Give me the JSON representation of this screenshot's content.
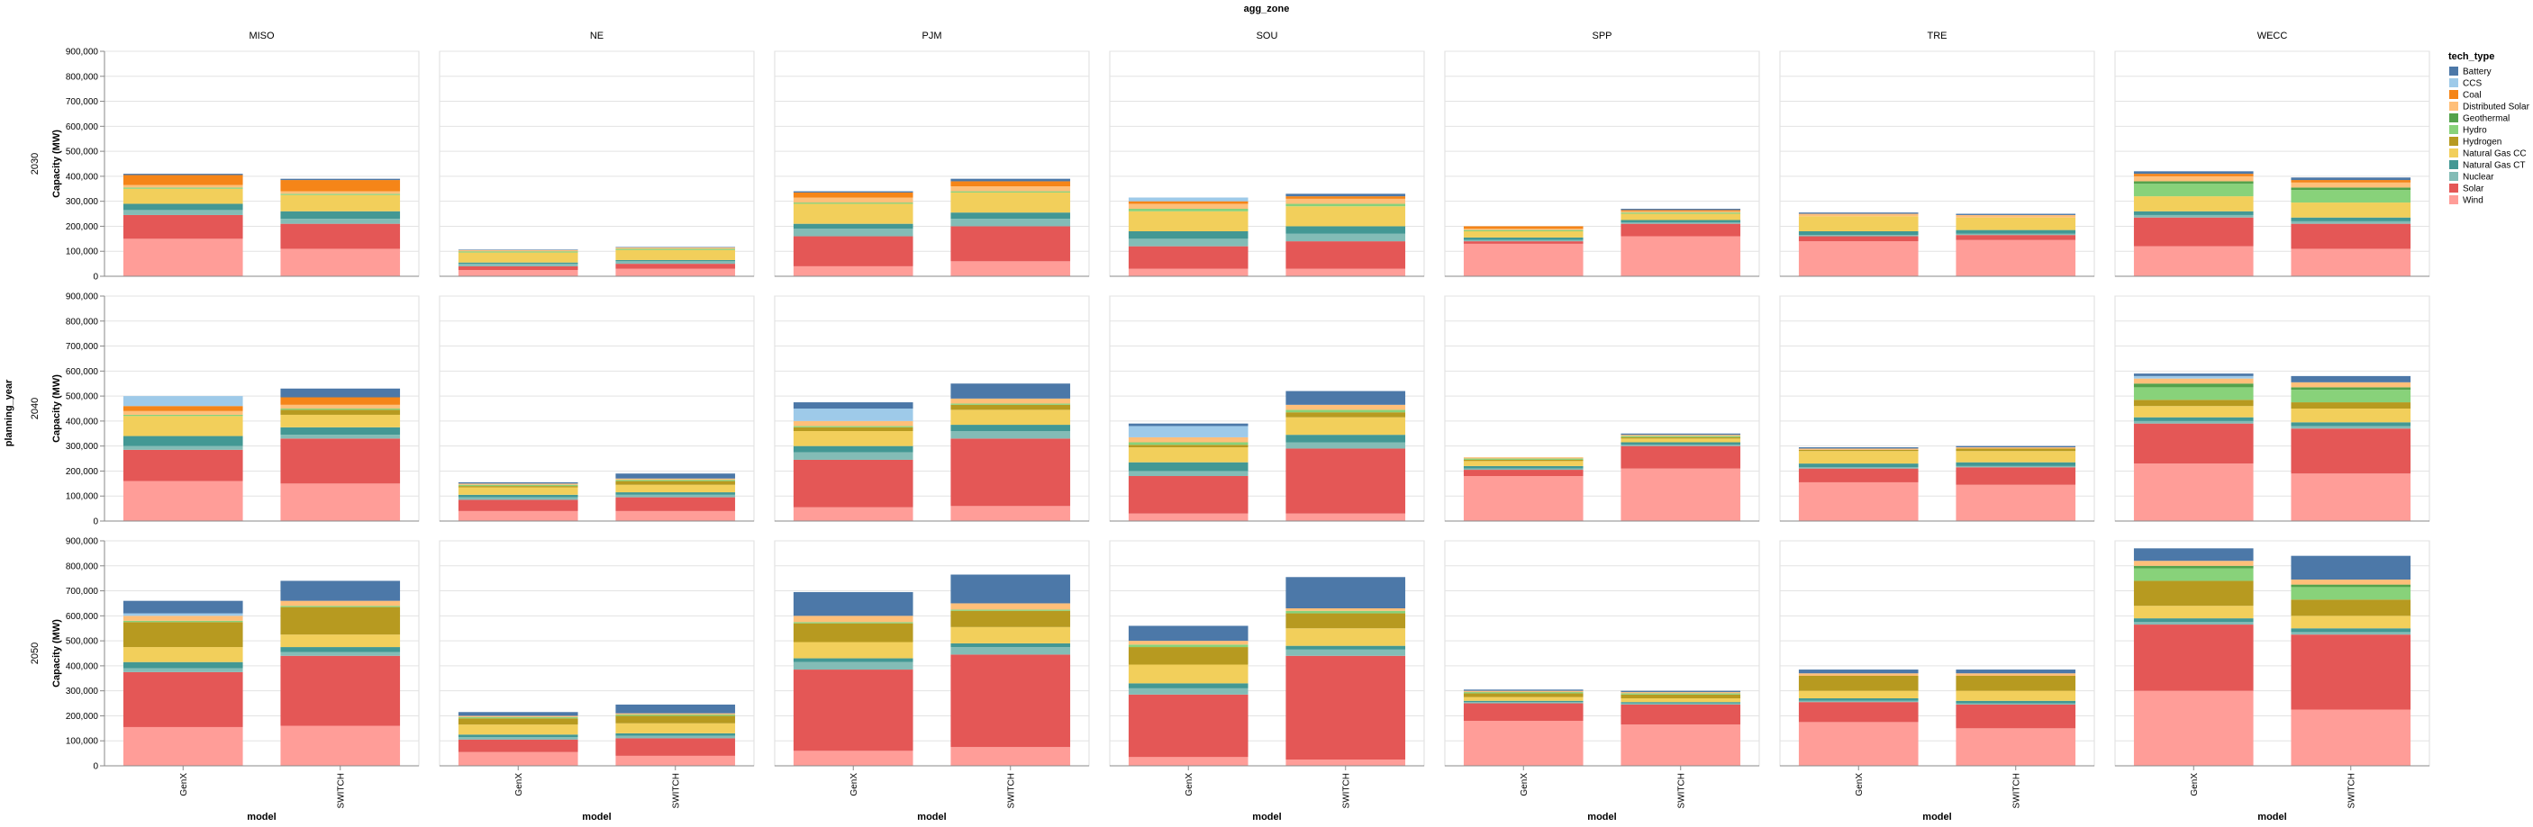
{
  "chart_data": {
    "type": "bar",
    "stacked": true,
    "column_facet": {
      "title": "agg_zone",
      "values": [
        "MISO",
        "NE",
        "PJM",
        "SOU",
        "SPP",
        "TRE",
        "WECC"
      ]
    },
    "row_facet": {
      "title": "planning_year",
      "values": [
        "2030",
        "2040",
        "2050"
      ]
    },
    "x": {
      "title": "model",
      "categories": [
        "GenX",
        "SWITCH"
      ]
    },
    "y": {
      "title": "Capacity (MW)",
      "ylim": [
        0,
        900000
      ],
      "ticks": [
        "0",
        "100,000",
        "200,000",
        "300,000",
        "400,000",
        "500,000",
        "600,000",
        "700,000",
        "800,000",
        "900,000"
      ],
      "grid": true
    },
    "legend": {
      "title": "tech_type",
      "position": "right"
    },
    "tech_types": [
      {
        "name": "Battery",
        "color": "#4c78a8"
      },
      {
        "name": "CCS",
        "color": "#9ecae9"
      },
      {
        "name": "Coal",
        "color": "#f58518"
      },
      {
        "name": "Distributed Solar",
        "color": "#ffbf79"
      },
      {
        "name": "Geothermal",
        "color": "#54a24b"
      },
      {
        "name": "Hydro",
        "color": "#88d27a"
      },
      {
        "name": "Hydrogen",
        "color": "#b79a20"
      },
      {
        "name": "Natural Gas CC",
        "color": "#f2cf5b"
      },
      {
        "name": "Natural Gas CT",
        "color": "#439894"
      },
      {
        "name": "Nuclear",
        "color": "#83bcb6"
      },
      {
        "name": "Solar",
        "color": "#e45756"
      },
      {
        "name": "Wind",
        "color": "#ff9d98"
      }
    ],
    "stack_order_bottom_to_top": [
      "Wind",
      "Solar",
      "Nuclear",
      "Natural Gas CT",
      "Natural Gas CC",
      "Hydrogen",
      "Hydro",
      "Geothermal",
      "Distributed Solar",
      "Coal",
      "CCS",
      "Battery"
    ],
    "values": {
      "2030": {
        "MISO": {
          "GenX": {
            "Wind": 150000,
            "Solar": 95000,
            "Nuclear": 20000,
            "Natural Gas CT": 25000,
            "Natural Gas CC": 60000,
            "Hydrogen": 0,
            "Hydro": 5000,
            "Geothermal": 0,
            "Distributed Solar": 10000,
            "Coal": 40000,
            "CCS": 0,
            "Battery": 5000
          },
          "SWITCH": {
            "Wind": 110000,
            "Solar": 100000,
            "Nuclear": 20000,
            "Natural Gas CT": 30000,
            "Natural Gas CC": 65000,
            "Hydrogen": 0,
            "Hydro": 5000,
            "Geothermal": 0,
            "Distributed Solar": 10000,
            "Coal": 45000,
            "CCS": 0,
            "Battery": 5000
          }
        },
        "NE": {
          "GenX": {
            "Wind": 25000,
            "Solar": 15000,
            "Nuclear": 10000,
            "Natural Gas CT": 5000,
            "Natural Gas CC": 40000,
            "Hydrogen": 0,
            "Hydro": 5000,
            "Geothermal": 0,
            "Distributed Solar": 5000,
            "Coal": 0,
            "CCS": 0,
            "Battery": 2000
          },
          "SWITCH": {
            "Wind": 30000,
            "Solar": 20000,
            "Nuclear": 10000,
            "Natural Gas CT": 5000,
            "Natural Gas CC": 40000,
            "Hydrogen": 0,
            "Hydro": 5000,
            "Geothermal": 0,
            "Distributed Solar": 5000,
            "Coal": 0,
            "CCS": 0,
            "Battery": 2000
          }
        },
        "PJM": {
          "GenX": {
            "Wind": 40000,
            "Solar": 120000,
            "Nuclear": 30000,
            "Natural Gas CT": 20000,
            "Natural Gas CC": 80000,
            "Hydrogen": 0,
            "Hydro": 5000,
            "Geothermal": 0,
            "Distributed Solar": 20000,
            "Coal": 20000,
            "CCS": 0,
            "Battery": 5000
          },
          "SWITCH": {
            "Wind": 60000,
            "Solar": 140000,
            "Nuclear": 30000,
            "Natural Gas CT": 25000,
            "Natural Gas CC": 80000,
            "Hydrogen": 0,
            "Hydro": 5000,
            "Geothermal": 0,
            "Distributed Solar": 20000,
            "Coal": 20000,
            "CCS": 0,
            "Battery": 10000
          }
        },
        "SOU": {
          "GenX": {
            "Wind": 30000,
            "Solar": 90000,
            "Nuclear": 30000,
            "Natural Gas CT": 30000,
            "Natural Gas CC": 80000,
            "Hydrogen": 0,
            "Hydro": 10000,
            "Geothermal": 0,
            "Distributed Solar": 20000,
            "Coal": 10000,
            "CCS": 15000,
            "Battery": 0
          },
          "SWITCH": {
            "Wind": 30000,
            "Solar": 110000,
            "Nuclear": 30000,
            "Natural Gas CT": 30000,
            "Natural Gas CC": 80000,
            "Hydrogen": 0,
            "Hydro": 10000,
            "Geothermal": 0,
            "Distributed Solar": 20000,
            "Coal": 10000,
            "CCS": 0,
            "Battery": 10000
          }
        },
        "SPP": {
          "GenX": {
            "Wind": 130000,
            "Solar": 10000,
            "Nuclear": 5000,
            "Natural Gas CT": 10000,
            "Natural Gas CC": 25000,
            "Hydrogen": 0,
            "Hydro": 5000,
            "Geothermal": 0,
            "Distributed Solar": 5000,
            "Coal": 10000,
            "CCS": 0,
            "Battery": 0
          },
          "SWITCH": {
            "Wind": 160000,
            "Solar": 50000,
            "Nuclear": 5000,
            "Natural Gas CT": 10000,
            "Natural Gas CC": 25000,
            "Hydrogen": 0,
            "Hydro": 5000,
            "Geothermal": 0,
            "Distributed Solar": 5000,
            "Coal": 5000,
            "CCS": 0,
            "Battery": 5000
          }
        },
        "TRE": {
          "GenX": {
            "Wind": 140000,
            "Solar": 20000,
            "Nuclear": 5000,
            "Natural Gas CT": 15000,
            "Natural Gas CC": 60000,
            "Hydrogen": 0,
            "Hydro": 0,
            "Geothermal": 0,
            "Distributed Solar": 10000,
            "Coal": 0,
            "CCS": 0,
            "Battery": 5000
          },
          "SWITCH": {
            "Wind": 145000,
            "Solar": 20000,
            "Nuclear": 5000,
            "Natural Gas CT": 15000,
            "Natural Gas CC": 50000,
            "Hydrogen": 0,
            "Hydro": 0,
            "Geothermal": 0,
            "Distributed Solar": 10000,
            "Coal": 0,
            "CCS": 0,
            "Battery": 5000
          }
        },
        "WECC": {
          "GenX": {
            "Wind": 120000,
            "Solar": 115000,
            "Nuclear": 10000,
            "Natural Gas CT": 15000,
            "Natural Gas CC": 60000,
            "Hydrogen": 0,
            "Hydro": 50000,
            "Geothermal": 10000,
            "Distributed Solar": 20000,
            "Coal": 10000,
            "CCS": 0,
            "Battery": 10000
          },
          "SWITCH": {
            "Wind": 110000,
            "Solar": 100000,
            "Nuclear": 10000,
            "Natural Gas CT": 15000,
            "Natural Gas CC": 60000,
            "Hydrogen": 0,
            "Hydro": 50000,
            "Geothermal": 10000,
            "Distributed Solar": 20000,
            "Coal": 10000,
            "CCS": 0,
            "Battery": 10000
          }
        }
      },
      "2040": {
        "MISO": {
          "GenX": {
            "Wind": 160000,
            "Solar": 125000,
            "Nuclear": 15000,
            "Natural Gas CT": 40000,
            "Natural Gas CC": 80000,
            "Hydrogen": 0,
            "Hydro": 5000,
            "Geothermal": 0,
            "Distributed Solar": 15000,
            "Coal": 20000,
            "CCS": 40000,
            "Battery": 0
          },
          "SWITCH": {
            "Wind": 150000,
            "Solar": 180000,
            "Nuclear": 15000,
            "Natural Gas CT": 30000,
            "Natural Gas CC": 50000,
            "Hydrogen": 20000,
            "Hydro": 5000,
            "Geothermal": 0,
            "Distributed Solar": 15000,
            "Coal": 30000,
            "CCS": 0,
            "Battery": 35000
          }
        },
        "NE": {
          "GenX": {
            "Wind": 40000,
            "Solar": 45000,
            "Nuclear": 10000,
            "Natural Gas CT": 10000,
            "Natural Gas CC": 30000,
            "Hydrogen": 5000,
            "Hydro": 5000,
            "Geothermal": 0,
            "Distributed Solar": 5000,
            "Coal": 0,
            "CCS": 0,
            "Battery": 5000
          },
          "SWITCH": {
            "Wind": 40000,
            "Solar": 55000,
            "Nuclear": 10000,
            "Natural Gas CT": 10000,
            "Natural Gas CC": 30000,
            "Hydrogen": 15000,
            "Hydro": 5000,
            "Geothermal": 0,
            "Distributed Solar": 5000,
            "Coal": 0,
            "CCS": 0,
            "Battery": 20000
          }
        },
        "PJM": {
          "GenX": {
            "Wind": 55000,
            "Solar": 190000,
            "Nuclear": 30000,
            "Natural Gas CT": 25000,
            "Natural Gas CC": 60000,
            "Hydrogen": 15000,
            "Hydro": 5000,
            "Geothermal": 0,
            "Distributed Solar": 20000,
            "Coal": 0,
            "CCS": 50000,
            "Battery": 25000
          },
          "SWITCH": {
            "Wind": 60000,
            "Solar": 270000,
            "Nuclear": 30000,
            "Natural Gas CT": 25000,
            "Natural Gas CC": 60000,
            "Hydrogen": 20000,
            "Hydro": 5000,
            "Geothermal": 0,
            "Distributed Solar": 20000,
            "Coal": 0,
            "CCS": 0,
            "Battery": 60000
          }
        },
        "SOU": {
          "GenX": {
            "Wind": 30000,
            "Solar": 150000,
            "Nuclear": 20000,
            "Natural Gas CT": 35000,
            "Natural Gas CC": 60000,
            "Hydrogen": 10000,
            "Hydro": 10000,
            "Geothermal": 0,
            "Distributed Solar": 20000,
            "Coal": 0,
            "CCS": 45000,
            "Battery": 10000
          },
          "SWITCH": {
            "Wind": 30000,
            "Solar": 260000,
            "Nuclear": 25000,
            "Natural Gas CT": 30000,
            "Natural Gas CC": 70000,
            "Hydrogen": 20000,
            "Hydro": 10000,
            "Geothermal": 0,
            "Distributed Solar": 20000,
            "Coal": 0,
            "CCS": 0,
            "Battery": 55000
          }
        },
        "SPP": {
          "GenX": {
            "Wind": 180000,
            "Solar": 25000,
            "Nuclear": 5000,
            "Natural Gas CT": 10000,
            "Natural Gas CC": 20000,
            "Hydrogen": 5000,
            "Hydro": 5000,
            "Geothermal": 0,
            "Distributed Solar": 5000,
            "Coal": 0,
            "CCS": 0,
            "Battery": 0
          },
          "SWITCH": {
            "Wind": 210000,
            "Solar": 90000,
            "Nuclear": 5000,
            "Natural Gas CT": 10000,
            "Natural Gas CC": 15000,
            "Hydrogen": 5000,
            "Hydro": 5000,
            "Geothermal": 0,
            "Distributed Solar": 5000,
            "Coal": 0,
            "CCS": 0,
            "Battery": 5000
          }
        },
        "TRE": {
          "GenX": {
            "Wind": 155000,
            "Solar": 55000,
            "Nuclear": 5000,
            "Natural Gas CT": 15000,
            "Natural Gas CC": 50000,
            "Hydrogen": 5000,
            "Hydro": 0,
            "Geothermal": 0,
            "Distributed Solar": 5000,
            "Coal": 0,
            "CCS": 0,
            "Battery": 5000
          },
          "SWITCH": {
            "Wind": 145000,
            "Solar": 70000,
            "Nuclear": 5000,
            "Natural Gas CT": 15000,
            "Natural Gas CC": 45000,
            "Hydrogen": 10000,
            "Hydro": 0,
            "Geothermal": 0,
            "Distributed Solar": 5000,
            "Coal": 0,
            "CCS": 0,
            "Battery": 5000
          }
        },
        "WECC": {
          "GenX": {
            "Wind": 230000,
            "Solar": 160000,
            "Nuclear": 10000,
            "Natural Gas CT": 15000,
            "Natural Gas CC": 45000,
            "Hydrogen": 25000,
            "Hydro": 50000,
            "Geothermal": 15000,
            "Distributed Solar": 20000,
            "Coal": 0,
            "CCS": 10000,
            "Battery": 10000
          },
          "SWITCH": {
            "Wind": 190000,
            "Solar": 180000,
            "Nuclear": 10000,
            "Natural Gas CT": 15000,
            "Natural Gas CC": 55000,
            "Hydrogen": 25000,
            "Hydro": 50000,
            "Geothermal": 10000,
            "Distributed Solar": 20000,
            "Coal": 0,
            "CCS": 0,
            "Battery": 25000
          }
        }
      },
      "2050": {
        "MISO": {
          "GenX": {
            "Wind": 155000,
            "Solar": 220000,
            "Nuclear": 15000,
            "Natural Gas CT": 25000,
            "Natural Gas CC": 60000,
            "Hydrogen": 100000,
            "Hydro": 5000,
            "Geothermal": 0,
            "Distributed Solar": 20000,
            "Coal": 0,
            "CCS": 10000,
            "Battery": 50000
          },
          "SWITCH": {
            "Wind": 160000,
            "Solar": 280000,
            "Nuclear": 15000,
            "Natural Gas CT": 20000,
            "Natural Gas CC": 50000,
            "Hydrogen": 110000,
            "Hydro": 5000,
            "Geothermal": 0,
            "Distributed Solar": 20000,
            "Coal": 0,
            "CCS": 0,
            "Battery": 80000
          }
        },
        "NE": {
          "GenX": {
            "Wind": 55000,
            "Solar": 50000,
            "Nuclear": 10000,
            "Natural Gas CT": 10000,
            "Natural Gas CC": 40000,
            "Hydrogen": 25000,
            "Hydro": 5000,
            "Geothermal": 0,
            "Distributed Solar": 5000,
            "Coal": 0,
            "CCS": 0,
            "Battery": 15000
          },
          "SWITCH": {
            "Wind": 40000,
            "Solar": 70000,
            "Nuclear": 10000,
            "Natural Gas CT": 10000,
            "Natural Gas CC": 40000,
            "Hydrogen": 30000,
            "Hydro": 5000,
            "Geothermal": 0,
            "Distributed Solar": 5000,
            "Coal": 0,
            "CCS": 0,
            "Battery": 35000
          }
        },
        "PJM": {
          "GenX": {
            "Wind": 60000,
            "Solar": 325000,
            "Nuclear": 30000,
            "Natural Gas CT": 15000,
            "Natural Gas CC": 65000,
            "Hydrogen": 75000,
            "Hydro": 5000,
            "Geothermal": 0,
            "Distributed Solar": 25000,
            "Coal": 0,
            "CCS": 0,
            "Battery": 95000
          },
          "SWITCH": {
            "Wind": 75000,
            "Solar": 370000,
            "Nuclear": 30000,
            "Natural Gas CT": 15000,
            "Natural Gas CC": 65000,
            "Hydrogen": 65000,
            "Hydro": 5000,
            "Geothermal": 0,
            "Distributed Solar": 25000,
            "Coal": 0,
            "CCS": 0,
            "Battery": 115000
          }
        },
        "SOU": {
          "GenX": {
            "Wind": 35000,
            "Solar": 250000,
            "Nuclear": 25000,
            "Natural Gas CT": 20000,
            "Natural Gas CC": 75000,
            "Hydrogen": 70000,
            "Hydro": 10000,
            "Geothermal": 0,
            "Distributed Solar": 15000,
            "Coal": 0,
            "CCS": 0,
            "Battery": 60000
          },
          "SWITCH": {
            "Wind": 25000,
            "Solar": 415000,
            "Nuclear": 25000,
            "Natural Gas CT": 15000,
            "Natural Gas CC": 70000,
            "Hydrogen": 60000,
            "Hydro": 10000,
            "Geothermal": 0,
            "Distributed Solar": 10000,
            "Coal": 0,
            "CCS": 0,
            "Battery": 125000
          }
        },
        "SPP": {
          "GenX": {
            "Wind": 180000,
            "Solar": 70000,
            "Nuclear": 5000,
            "Natural Gas CT": 5000,
            "Natural Gas CC": 15000,
            "Hydrogen": 15000,
            "Hydro": 5000,
            "Geothermal": 0,
            "Distributed Solar": 5000,
            "Coal": 0,
            "CCS": 0,
            "Battery": 5000
          },
          "SWITCH": {
            "Wind": 165000,
            "Solar": 80000,
            "Nuclear": 5000,
            "Natural Gas CT": 5000,
            "Natural Gas CC": 15000,
            "Hydrogen": 15000,
            "Hydro": 5000,
            "Geothermal": 0,
            "Distributed Solar": 5000,
            "Coal": 0,
            "CCS": 0,
            "Battery": 5000
          }
        },
        "TRE": {
          "GenX": {
            "Wind": 175000,
            "Solar": 80000,
            "Nuclear": 5000,
            "Natural Gas CT": 10000,
            "Natural Gas CC": 30000,
            "Hydrogen": 60000,
            "Hydro": 0,
            "Geothermal": 0,
            "Distributed Solar": 10000,
            "Coal": 0,
            "CCS": 0,
            "Battery": 15000
          },
          "SWITCH": {
            "Wind": 150000,
            "Solar": 95000,
            "Nuclear": 5000,
            "Natural Gas CT": 10000,
            "Natural Gas CC": 40000,
            "Hydrogen": 60000,
            "Hydro": 0,
            "Geothermal": 0,
            "Distributed Solar": 10000,
            "Coal": 0,
            "CCS": 0,
            "Battery": 15000
          }
        },
        "WECC": {
          "GenX": {
            "Wind": 300000,
            "Solar": 265000,
            "Nuclear": 10000,
            "Natural Gas CT": 15000,
            "Natural Gas CC": 50000,
            "Hydrogen": 100000,
            "Hydro": 50000,
            "Geothermal": 10000,
            "Distributed Solar": 20000,
            "Coal": 0,
            "CCS": 0,
            "Battery": 50000
          },
          "SWITCH": {
            "Wind": 225000,
            "Solar": 300000,
            "Nuclear": 10000,
            "Natural Gas CT": 15000,
            "Natural Gas CC": 50000,
            "Hydrogen": 65000,
            "Hydro": 50000,
            "Geothermal": 10000,
            "Distributed Solar": 20000,
            "Coal": 0,
            "CCS": 0,
            "Battery": 95000
          }
        }
      }
    }
  }
}
